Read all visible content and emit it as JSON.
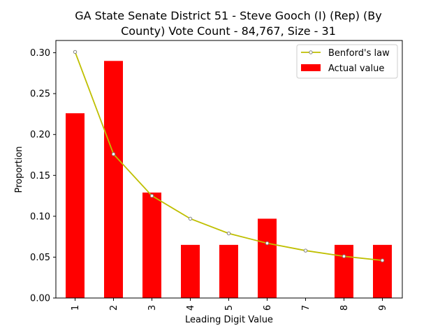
{
  "chart_data": {
    "type": "bar",
    "title_lines": [
      "GA State Senate District 51 - Steve Gooch (I) (Rep) (By",
      "County) Vote Count - 84,767, Size - 31"
    ],
    "xlabel": "Leading Digit Value",
    "ylabel": "Proportion",
    "categories": [
      "1",
      "2",
      "3",
      "4",
      "5",
      "6",
      "7",
      "8",
      "9"
    ],
    "ylim": [
      0,
      0.315
    ],
    "yticks": [
      0.0,
      0.05,
      0.1,
      0.15,
      0.2,
      0.25,
      0.3
    ],
    "ytick_labels": [
      "0.00",
      "0.05",
      "0.10",
      "0.15",
      "0.20",
      "0.25",
      "0.30"
    ],
    "series": [
      {
        "name": "Actual value",
        "kind": "bar",
        "color": "#ff0000",
        "values": [
          0.226,
          0.29,
          0.129,
          0.065,
          0.065,
          0.097,
          0.0,
          0.065,
          0.065
        ]
      },
      {
        "name": "Benford's law",
        "kind": "line",
        "color": "#bfbf00",
        "marker_color": "#808080",
        "values": [
          0.301,
          0.176,
          0.125,
          0.097,
          0.079,
          0.067,
          0.058,
          0.051,
          0.046
        ]
      }
    ],
    "legend": {
      "placement": "top-right",
      "entries": [
        "Benford's law",
        "Actual value"
      ]
    },
    "grid": false
  }
}
